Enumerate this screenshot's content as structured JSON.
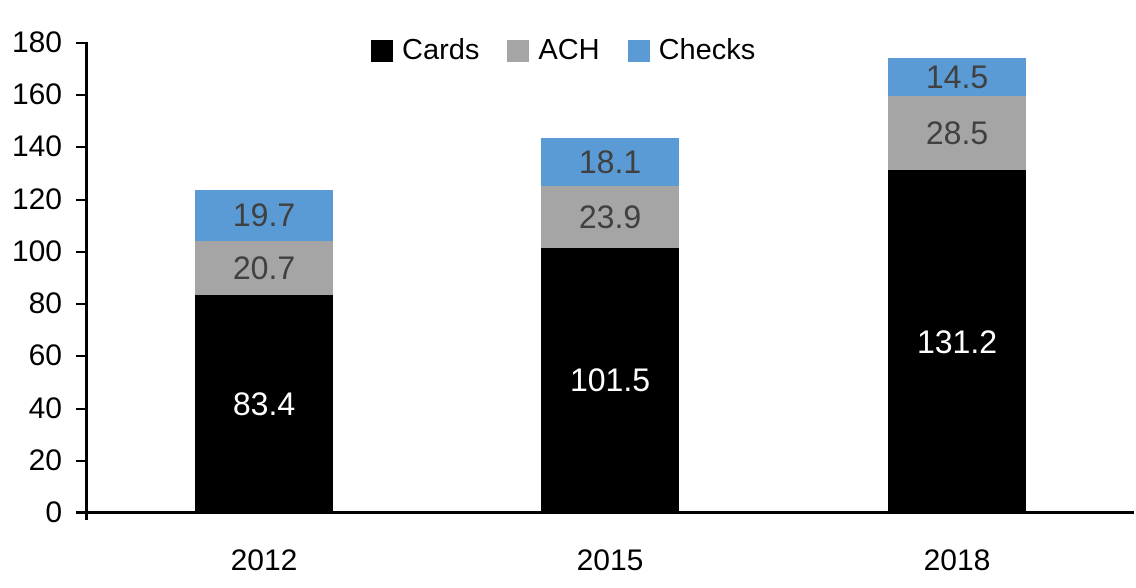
{
  "chart_data": {
    "type": "bar",
    "stacked": true,
    "title": "",
    "xlabel": "",
    "ylabel": "",
    "categories": [
      "2012",
      "2015",
      "2018"
    ],
    "series": [
      {
        "name": "Cards",
        "color": "#000000",
        "label_color": "#FFFFFF",
        "values": [
          83.4,
          101.5,
          131.2
        ]
      },
      {
        "name": "ACH",
        "color": "#A5A5A5",
        "label_color": "#404040",
        "values": [
          20.7,
          23.9,
          28.5
        ]
      },
      {
        "name": "Checks",
        "color": "#5B9BD5",
        "label_color": "#404040",
        "values": [
          19.7,
          18.1,
          14.5
        ]
      }
    ],
    "totals": [
      123.8,
      143.5,
      174.2
    ],
    "ylim": [
      0,
      180
    ],
    "yticks": [
      0,
      20,
      40,
      60,
      80,
      100,
      120,
      140,
      160,
      180
    ],
    "legend_position": "top",
    "grid": false,
    "data_labels": true,
    "axis_color": "#000000",
    "text_color": "#000000"
  }
}
